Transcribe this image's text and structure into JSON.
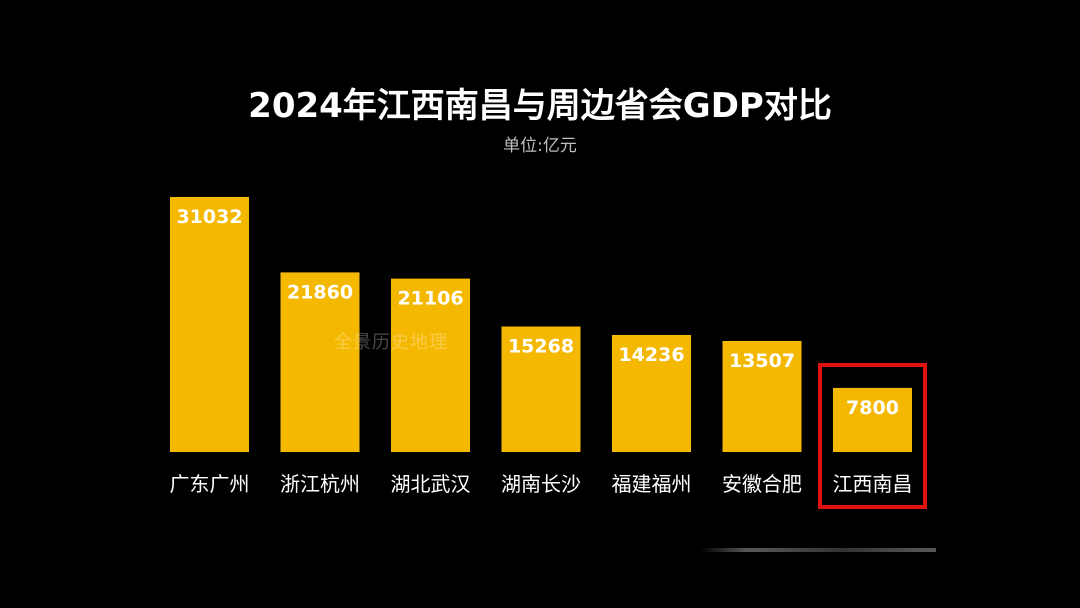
{
  "chart_data": {
    "type": "bar",
    "title": "2024年江西南昌与周边省会GDP对比",
    "subtitle": "单位:亿元",
    "categories": [
      "广东广州",
      "浙江杭州",
      "湖北武汉",
      "湖南长沙",
      "福建福州",
      "安徽合肥",
      "江西南昌"
    ],
    "values": [
      31032,
      21860,
      21106,
      15268,
      14236,
      13507,
      7800
    ],
    "highlighted_category": "江西南昌",
    "bar_color": "#f5b800",
    "highlight_border_color": "#e0120f",
    "value_label_color": "#ffffff",
    "background_color": "#000000",
    "ylim": [
      0,
      31032
    ],
    "grid": false,
    "legend": "none"
  },
  "watermark": "全景历史地理"
}
